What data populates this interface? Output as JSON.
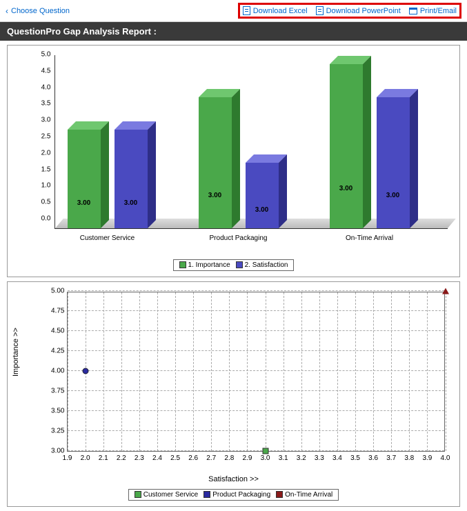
{
  "toolbar": {
    "choose_question": "Choose Question",
    "download_excel": "Download Excel",
    "download_powerpoint": "Download PowerPoint",
    "print_email": "Print/Email"
  },
  "title": "QuestionPro Gap Analysis Report :",
  "bar_chart": {
    "type": "bar-3d-grouped",
    "ylim": [
      0.0,
      5.0
    ],
    "ytick_step": 0.5,
    "categories": [
      "Customer Service",
      "Product Packaging",
      "On-Time Arrival"
    ],
    "series": [
      {
        "name": "1. Importance",
        "color": "#4aa84a",
        "side": "#2e7a2e",
        "top": "#6fc76f",
        "values": [
          3.0,
          4.0,
          5.0
        ]
      },
      {
        "name": "2. Satisfaction",
        "color": "#4a4ac0",
        "side": "#2e2e88",
        "top": "#7a7ae0",
        "values": [
          3.0,
          2.0,
          4.0
        ]
      }
    ],
    "value_label": "3.00",
    "label_fontsize": 10,
    "floor_color": "#cccccc"
  },
  "scatter_chart": {
    "type": "scatter",
    "xlabel": "Satisfaction >>",
    "ylabel": "Importance >>",
    "xlim": [
      1.9,
      4.0
    ],
    "ylim": [
      3.0,
      5.0
    ],
    "xtick_step": 0.1,
    "ytick_step": 0.25,
    "grid_color": "#aaaaaa",
    "series": [
      {
        "name": "Customer Service",
        "marker": "square",
        "color": "#4aa84a",
        "x": 3.0,
        "y": 3.0
      },
      {
        "name": "Product Packaging",
        "marker": "circle",
        "color": "#2a2aa0",
        "x": 2.0,
        "y": 4.0
      },
      {
        "name": "On-Time Arrival",
        "marker": "triangle",
        "color": "#8a1a1a",
        "x": 4.0,
        "y": 5.0
      }
    ]
  },
  "colors": {
    "link": "#0066cc",
    "highlight_border": "#d00000",
    "title_bg": "#3a3a3a"
  }
}
